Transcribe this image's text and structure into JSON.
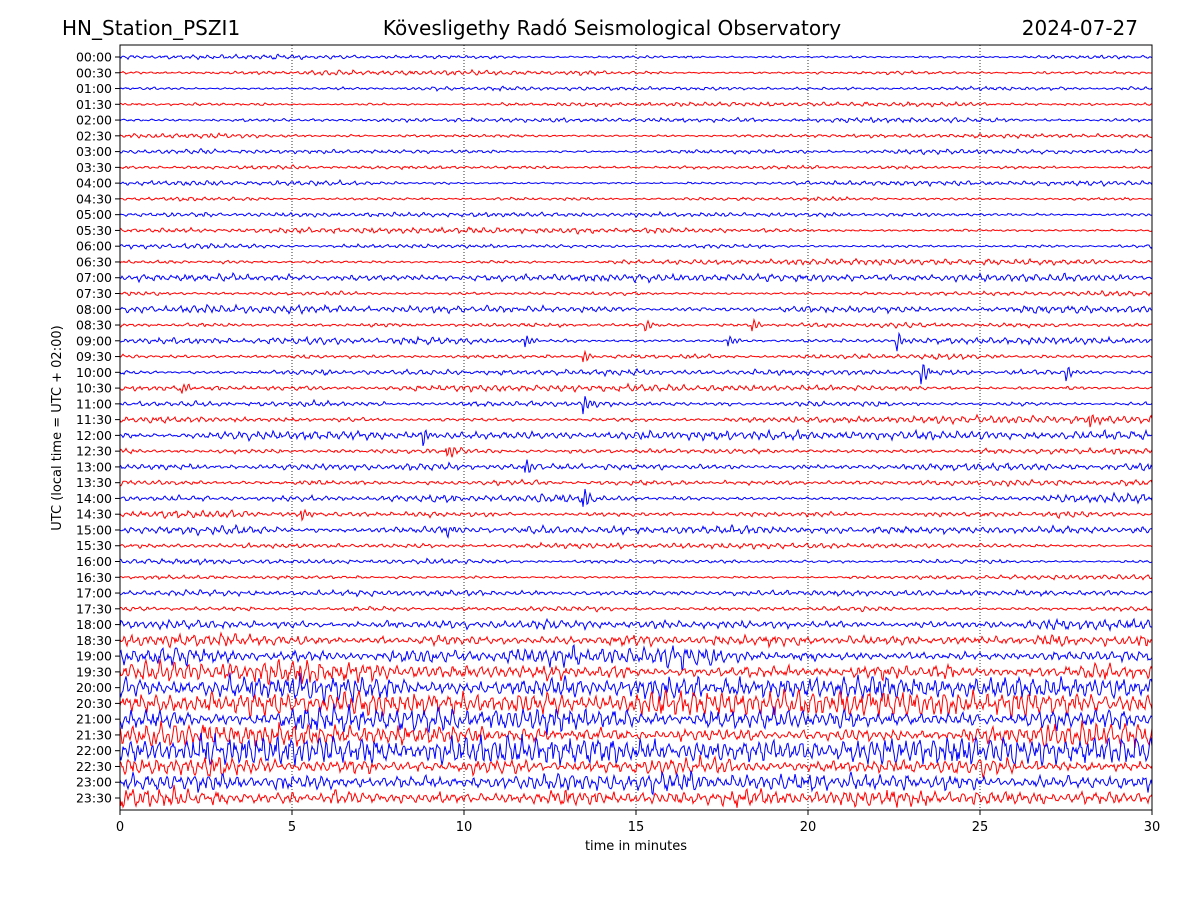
{
  "chart_data": {
    "type": "line",
    "title_left": "HN_Station_PSZI1",
    "title_center": "Kövesligethy Radó Seismological Observatory",
    "title_right": "2024-07-27",
    "xlabel": "time in minutes",
    "ylabel": "UTC (local time = UTC + 02:00)",
    "xlim": [
      0,
      30
    ],
    "x_ticks": [
      "0",
      "5",
      "10",
      "15",
      "20",
      "25",
      "30"
    ],
    "grid": "vertical dotted at 5-minute intervals",
    "row_labels": [
      "00:00",
      "00:30",
      "01:00",
      "01:30",
      "02:00",
      "02:30",
      "03:00",
      "03:30",
      "04:00",
      "04:30",
      "05:00",
      "05:30",
      "06:00",
      "06:30",
      "07:00",
      "07:30",
      "08:00",
      "08:30",
      "09:00",
      "09:30",
      "10:00",
      "10:30",
      "11:00",
      "11:30",
      "12:00",
      "12:30",
      "13:00",
      "13:30",
      "14:00",
      "14:30",
      "15:00",
      "15:30",
      "16:00",
      "16:30",
      "17:00",
      "17:30",
      "18:00",
      "18:30",
      "19:00",
      "19:30",
      "20:00",
      "20:30",
      "21:00",
      "21:30",
      "22:00",
      "22:30",
      "23:00",
      "23:30"
    ],
    "trace_colors": [
      "#0000ff",
      "#ff0000"
    ],
    "relative_noise_amplitude": [
      1.3,
      1.3,
      1.3,
      1.2,
      1.3,
      1.4,
      1.3,
      1.3,
      1.4,
      1.4,
      1.3,
      1.5,
      1.5,
      1.6,
      2.0,
      1.6,
      2.2,
      1.8,
      2.0,
      2.0,
      1.8,
      1.8,
      2.0,
      2.0,
      2.4,
      2.4,
      2.6,
      2.4,
      2.4,
      2.2,
      2.4,
      1.4,
      1.4,
      1.3,
      1.5,
      2.2,
      3.5,
      5.0,
      6.0,
      6.5,
      7.0,
      7.0,
      7.0,
      7.5,
      7.5,
      7.5,
      7.5,
      8.0
    ],
    "events": [
      {
        "row": 17,
        "minute": 15.3,
        "amplitude": 6
      },
      {
        "row": 17,
        "minute": 18.4,
        "amplitude": 6
      },
      {
        "row": 18,
        "minute": 11.8,
        "amplitude": 7
      },
      {
        "row": 18,
        "minute": 17.7,
        "amplitude": 6
      },
      {
        "row": 18,
        "minute": 22.6,
        "amplitude": 9
      },
      {
        "row": 19,
        "minute": 13.5,
        "amplitude": 6
      },
      {
        "row": 20,
        "minute": 23.3,
        "amplitude": 12
      },
      {
        "row": 20,
        "minute": 27.5,
        "amplitude": 8
      },
      {
        "row": 21,
        "minute": 1.8,
        "amplitude": 6
      },
      {
        "row": 22,
        "minute": 13.5,
        "amplitude": 9
      },
      {
        "row": 23,
        "minute": 28.2,
        "amplitude": 9
      },
      {
        "row": 24,
        "minute": 8.8,
        "amplitude": 10
      },
      {
        "row": 25,
        "minute": 9.5,
        "amplitude": 8
      },
      {
        "row": 26,
        "minute": 11.8,
        "amplitude": 8
      },
      {
        "row": 28,
        "minute": 13.5,
        "amplitude": 9
      },
      {
        "row": 29,
        "minute": 5.3,
        "amplitude": 8
      },
      {
        "row": 30,
        "minute": 9.5,
        "amplitude": 8
      }
    ]
  }
}
